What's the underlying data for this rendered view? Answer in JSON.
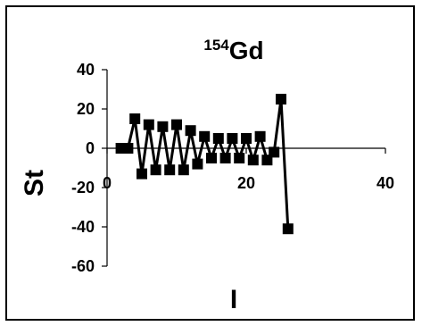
{
  "chart_data": {
    "type": "line",
    "title_superscript": "154",
    "title_main": "Gd",
    "xlabel": "I",
    "ylabel": "St",
    "xlim": [
      0,
      40
    ],
    "ylim": [
      -60,
      40
    ],
    "x_ticks": [
      "0",
      "20",
      "40"
    ],
    "y_ticks": [
      "40",
      "20",
      "0",
      "-20",
      "-40",
      "-60"
    ],
    "grid": false,
    "legend": "none",
    "marker": "square",
    "color": "#000000",
    "series": [
      {
        "x": [
          2,
          3,
          4,
          5,
          6,
          7,
          8,
          9,
          10,
          11,
          12,
          13,
          14,
          15,
          16,
          17,
          18,
          19,
          20,
          21,
          22,
          23,
          24,
          25,
          26
        ],
        "y": [
          0,
          0,
          15,
          -13,
          12,
          -11,
          11,
          -11,
          12,
          -11,
          9,
          -8,
          6,
          -5,
          5,
          -5,
          5,
          -5,
          5,
          -6,
          6,
          -6,
          -2,
          25,
          -41
        ]
      }
    ]
  }
}
